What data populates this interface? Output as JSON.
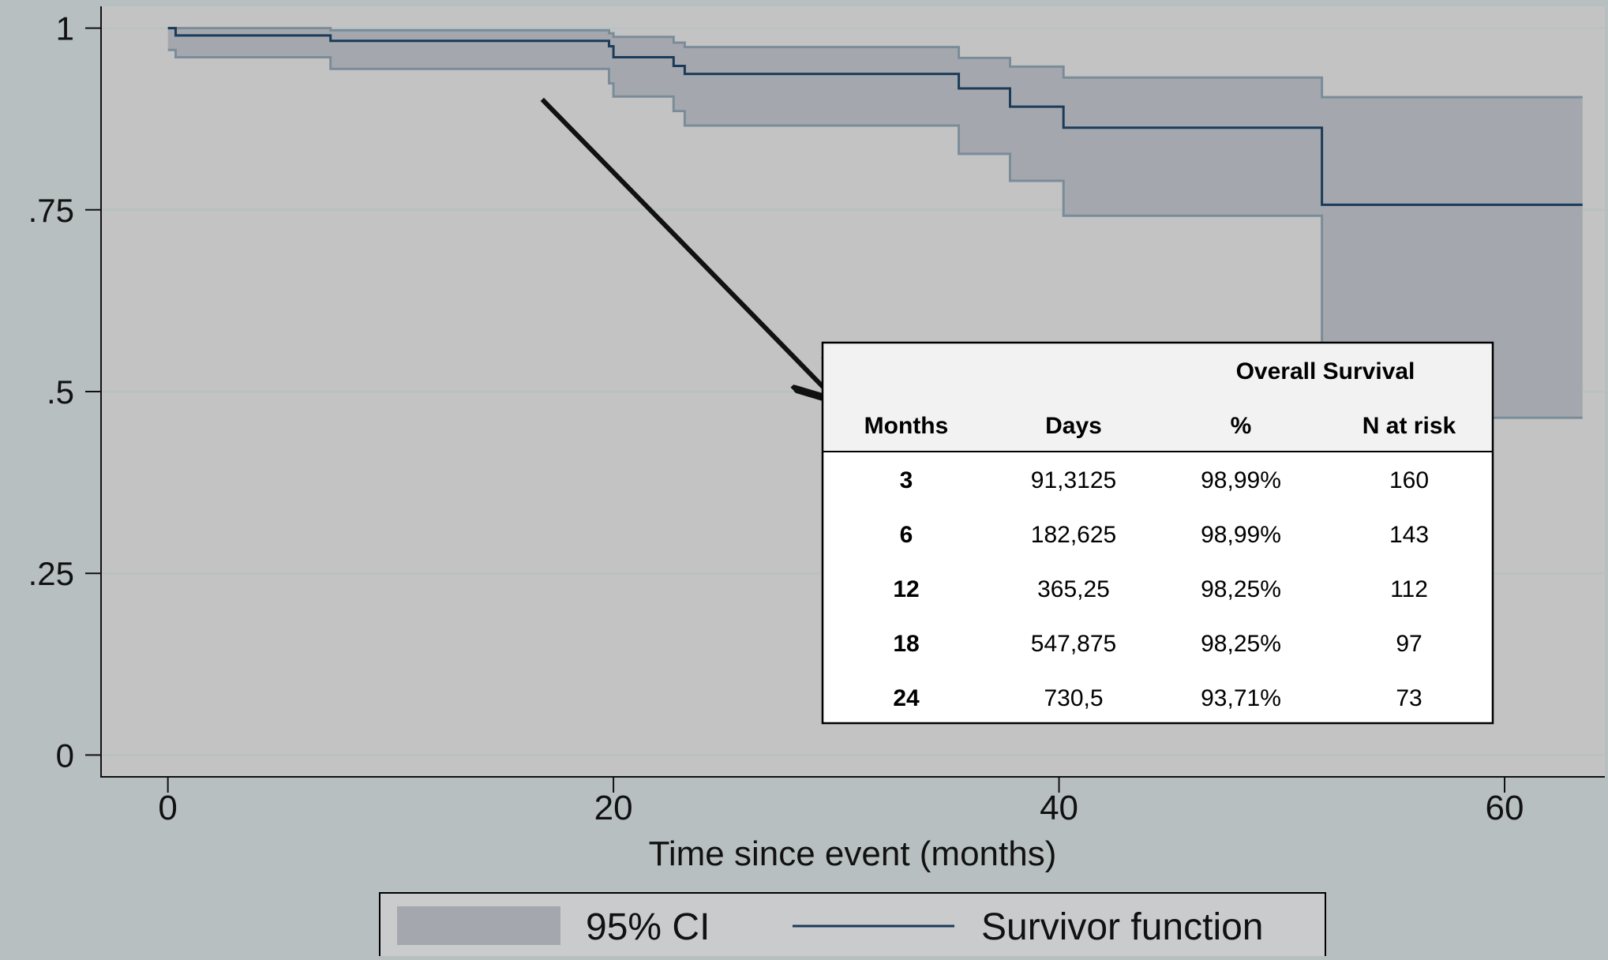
{
  "chart_data": {
    "type": "line",
    "xlabel": "Time since event (months)",
    "ylabel": "",
    "xlim": [
      -3,
      64.5
    ],
    "ylim": [
      -0.03,
      1.03
    ],
    "xticks": [
      0,
      20,
      40,
      60
    ],
    "xtick_labels": [
      "0",
      "20",
      "40",
      "60"
    ],
    "yticks": [
      0,
      0.25,
      0.5,
      0.75,
      1
    ],
    "ytick_labels": [
      "0",
      ".25",
      ".5",
      ".75",
      "1"
    ],
    "grid": "horizontal",
    "legend": {
      "placement": "bottom",
      "entries": [
        {
          "label": "95% CI",
          "kind": "band"
        },
        {
          "label": "Survivor function",
          "kind": "line"
        }
      ]
    },
    "colors": {
      "page_background": "#b8bfc1",
      "plot_background": "#c3c3c3",
      "band_fill": "#a4a8ae",
      "band_edge": "#7b8c99",
      "survivor_line": "#1b3b58",
      "grid": "#b7c2c1",
      "arrow": "#111111"
    },
    "series": [
      {
        "name": "Survivor function",
        "role": "estimate",
        "step": true,
        "x": [
          0,
          0.35,
          7.3,
          19.8,
          20.0,
          22.7,
          23.2,
          35.5,
          37.8,
          40.2,
          51.8,
          63.5
        ],
        "y": [
          1.0,
          0.9899,
          0.9825,
          0.975,
          0.96,
          0.948,
          0.937,
          0.917,
          0.892,
          0.863,
          0.757,
          0.757
        ]
      },
      {
        "name": "95% CI upper",
        "role": "ci_upper",
        "step": true,
        "x": [
          0,
          7.3,
          19.8,
          20.0,
          22.7,
          23.2,
          35.5,
          37.8,
          40.2,
          51.8,
          63.5
        ],
        "y": [
          1.0,
          0.997,
          0.993,
          0.988,
          0.98,
          0.974,
          0.959,
          0.947,
          0.932,
          0.905,
          0.905
        ]
      },
      {
        "name": "95% CI lower",
        "role": "ci_lower",
        "step": true,
        "x": [
          0,
          0.35,
          7.3,
          19.8,
          20.0,
          22.7,
          23.2,
          35.5,
          37.8,
          40.2,
          51.8,
          63.5
        ],
        "y": [
          0.97,
          0.96,
          0.944,
          0.924,
          0.906,
          0.886,
          0.866,
          0.827,
          0.79,
          0.742,
          0.464,
          0.464
        ]
      }
    ],
    "annotation_arrow": {
      "from": [
        16.8,
        0.902
      ],
      "to": [
        29.9,
        0.491
      ]
    },
    "inset_table": {
      "super_header": "Overall Survival",
      "headers": [
        "Months",
        "Days",
        "%",
        "N at risk"
      ],
      "rows": [
        [
          "3",
          "91,3125",
          "98,99%",
          "160"
        ],
        [
          "6",
          "182,625",
          "98,99%",
          "143"
        ],
        [
          "12",
          "365,25",
          "98,25%",
          "112"
        ],
        [
          "18",
          "547,875",
          "98,25%",
          "97"
        ],
        [
          "24",
          "730,5",
          "93,71%",
          "73"
        ]
      ]
    }
  }
}
